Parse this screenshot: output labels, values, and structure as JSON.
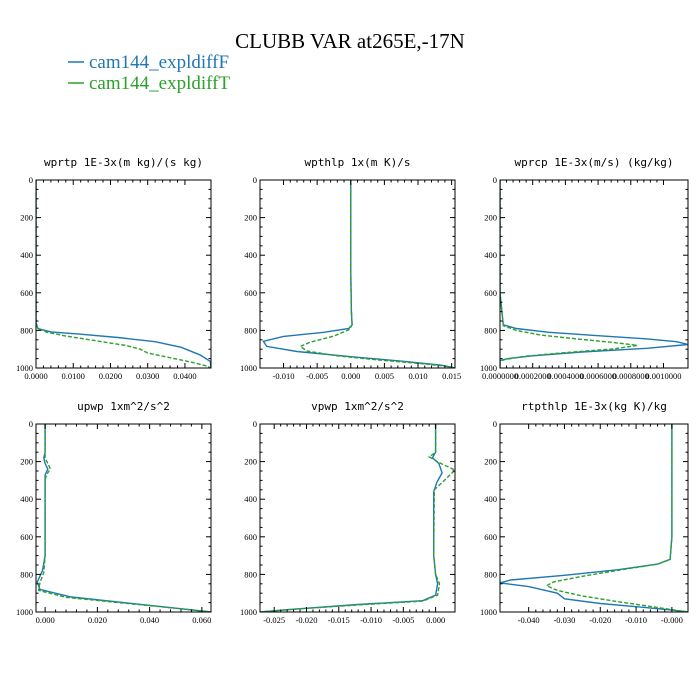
{
  "figure": {
    "title": "CLUBB VAR at265E,-17N",
    "legend": [
      {
        "name": "cam144_expldiffF",
        "color": "#1f77b4",
        "dash": "solid"
      },
      {
        "name": "cam144_expldiffT",
        "color": "#2ca02c",
        "dash": "dashed"
      }
    ]
  },
  "chart_data": [
    {
      "type": "line",
      "title": "wprtp  1E-3x(m kg)/(s kg)",
      "xlim": [
        0,
        0.047
      ],
      "ylim": [
        1000,
        0
      ],
      "y_inverted": true,
      "xticks": [
        "0.0000",
        "0.0100",
        "0.0200",
        "0.0300",
        "0.0400"
      ],
      "xtick_values": [
        0,
        0.01,
        0.02,
        0.03,
        0.04
      ],
      "yticks": [
        "0",
        "200",
        "400",
        "600",
        "800",
        "1000"
      ],
      "series": [
        {
          "name": "cam144_expldiffF",
          "x": [
            0,
            0,
            0,
            0.0005,
            0.004,
            0.012,
            0.022,
            0.032,
            0.039,
            0.044,
            0.0468,
            0.047
          ],
          "y": [
            0,
            600,
            760,
            790,
            808,
            820,
            838,
            860,
            890,
            930,
            965,
            1000
          ]
        },
        {
          "name": "cam144_expldiffT",
          "x": [
            0,
            0,
            0,
            0.0005,
            0.003,
            0.008,
            0.016,
            0.024,
            0.028,
            0.03,
            0.036,
            0.042,
            0.046,
            0.047
          ],
          "y": [
            0,
            600,
            760,
            790,
            810,
            830,
            855,
            880,
            900,
            920,
            945,
            970,
            990,
            1000
          ]
        }
      ]
    },
    {
      "type": "line",
      "title": "wpthlp  1x(m K)/s",
      "xlim": [
        -0.0135,
        0.0155
      ],
      "ylim": [
        1000,
        0
      ],
      "y_inverted": true,
      "xticks": [
        "-0.010",
        "-0.005",
        "0.000",
        "0.005",
        "0.010",
        "0.015"
      ],
      "xtick_values": [
        -0.01,
        -0.005,
        0,
        0.005,
        0.01,
        0.015
      ],
      "yticks": [
        "0",
        "200",
        "400",
        "600",
        "800",
        "1000"
      ],
      "series": [
        {
          "name": "cam144_expldiffF",
          "x": [
            0,
            0,
            0.0001,
            0.0002,
            -0.0003,
            -0.004,
            -0.01,
            -0.013,
            -0.0125,
            -0.008,
            0.0,
            0.008,
            0.0135,
            0.0155
          ],
          "y": [
            0,
            500,
            700,
            770,
            790,
            810,
            832,
            858,
            885,
            912,
            940,
            965,
            985,
            1000
          ]
        },
        {
          "name": "cam144_expldiffT",
          "x": [
            0,
            0,
            0.0001,
            0.0002,
            -0.0002,
            -0.0025,
            -0.006,
            -0.0075,
            -0.0065,
            -0.002,
            0.004,
            0.01,
            0.014,
            0.0155
          ],
          "y": [
            0,
            500,
            700,
            770,
            795,
            830,
            862,
            885,
            910,
            935,
            957,
            975,
            990,
            1000
          ]
        }
      ]
    },
    {
      "type": "line",
      "title": "wprcp  1E-3x(m/s) (kg/kg)",
      "xlim": [
        0,
        0.00115
      ],
      "ylim": [
        1000,
        0
      ],
      "y_inverted": true,
      "xticks": [
        "0.0000000",
        "0.0002000",
        "0.0004000",
        "0.0006000",
        "0.0008000",
        "0.0010000"
      ],
      "xtick_values": [
        0,
        0.0002,
        0.0004,
        0.0006,
        0.0008,
        0.001
      ],
      "yticks": [
        "0",
        "200",
        "400",
        "600",
        "800",
        "1000"
      ],
      "series": [
        {
          "name": "cam144_expldiffF",
          "x": [
            0,
            0,
            2e-05,
            0.0001,
            0.0003,
            0.0006,
            0.0009,
            0.00108,
            0.00115,
            0.0009,
            0.0005,
            0.0002,
            5e-05,
            0.0,
            0.0
          ],
          "y": [
            0,
            600,
            770,
            790,
            810,
            828,
            845,
            860,
            875,
            895,
            915,
            935,
            950,
            960,
            1000
          ]
        },
        {
          "name": "cam144_expldiffT",
          "x": [
            0,
            0,
            2e-05,
            0.0001,
            0.00025,
            0.0005,
            0.0007,
            0.00084,
            0.0007,
            0.0004,
            0.00015,
            3e-05,
            0.0,
            0.0
          ],
          "y": [
            0,
            600,
            775,
            800,
            825,
            848,
            865,
            880,
            898,
            918,
            938,
            955,
            965,
            1000
          ]
        }
      ]
    },
    {
      "type": "line",
      "title": "upwp  1xm^2/s^2",
      "xlim": [
        -0.0035,
        0.0635
      ],
      "ylim": [
        1000,
        0
      ],
      "y_inverted": true,
      "xticks": [
        "0.000",
        "0.020",
        "0.040",
        "0.060"
      ],
      "xtick_values": [
        0,
        0.02,
        0.04,
        0.06
      ],
      "yticks": [
        "0",
        "200",
        "400",
        "600",
        "800",
        "1000"
      ],
      "series": [
        {
          "name": "cam144_expldiffF",
          "x": [
            0,
            0,
            -0.0005,
            0.0,
            0.001,
            0.0,
            0.0,
            0.0,
            -0.001,
            -0.003,
            -0.002,
            0.01,
            0.03,
            0.05,
            0.0635
          ],
          "y": [
            0,
            150,
            180,
            210,
            240,
            270,
            300,
            700,
            780,
            840,
            880,
            920,
            950,
            980,
            1000
          ]
        },
        {
          "name": "cam144_expldiffT",
          "x": [
            0,
            0,
            0.0,
            0.001,
            0.002,
            0.0005,
            0.0,
            0.0,
            -0.0005,
            -0.002,
            -0.0025,
            0.008,
            0.028,
            0.05,
            0.0635
          ],
          "y": [
            0,
            150,
            180,
            210,
            240,
            270,
            300,
            700,
            790,
            845,
            885,
            922,
            950,
            980,
            1000
          ]
        }
      ]
    },
    {
      "type": "line",
      "title": "vpwp  1xm^2/s^2",
      "xlim": [
        -0.0272,
        0.003
      ],
      "ylim": [
        1000,
        0
      ],
      "y_inverted": true,
      "xticks": [
        "-0.025",
        "-0.020",
        "-0.015",
        "-0.010",
        "-0.005",
        "0.000"
      ],
      "xtick_values": [
        -0.025,
        -0.02,
        -0.015,
        -0.01,
        -0.005,
        0
      ],
      "yticks": [
        "0",
        "200",
        "400",
        "600",
        "800",
        "1000"
      ],
      "series": [
        {
          "name": "cam144_expldiffF",
          "x": [
            0,
            0,
            -0.0005,
            0.0005,
            0.001,
            0.0002,
            -0.0003,
            -0.0003,
            0.0,
            0.0003,
            0.0,
            -0.002,
            -0.012,
            -0.022,
            -0.0272
          ],
          "y": [
            0,
            150,
            180,
            210,
            260,
            310,
            360,
            700,
            800,
            850,
            910,
            940,
            960,
            985,
            1000
          ]
        },
        {
          "name": "cam144_expldiffT",
          "x": [
            0,
            0,
            -0.001,
            0.0005,
            0.003,
            0.0015,
            -0.0002,
            -0.0003,
            0.0,
            0.0006,
            0.0003,
            -0.002,
            -0.012,
            -0.022,
            -0.0272
          ],
          "y": [
            0,
            150,
            175,
            205,
            245,
            295,
            350,
            700,
            800,
            850,
            910,
            942,
            962,
            985,
            1000
          ]
        }
      ]
    },
    {
      "type": "line",
      "title": "rtpthlp  1E-3x(kg K)/kg",
      "xlim": [
        -0.048,
        0.0045
      ],
      "ylim": [
        1000,
        0
      ],
      "y_inverted": true,
      "xticks": [
        "-0.040",
        "-0.030",
        "-0.020",
        "-0.010",
        "-0.000"
      ],
      "xtick_values": [
        -0.04,
        -0.03,
        -0.02,
        -0.01,
        0
      ],
      "yticks": [
        "0",
        "200",
        "400",
        "600",
        "800",
        "1000"
      ],
      "series": [
        {
          "name": "cam144_expldiffF",
          "x": [
            0,
            0,
            -0.0005,
            -0.004,
            -0.015,
            -0.03,
            -0.045,
            -0.048,
            -0.04,
            -0.032,
            -0.03,
            -0.02,
            -0.008,
            0.0,
            0.0045
          ],
          "y": [
            0,
            600,
            720,
            745,
            775,
            805,
            830,
            845,
            865,
            900,
            930,
            955,
            975,
            990,
            1000
          ]
        },
        {
          "name": "cam144_expldiffT",
          "x": [
            0,
            0,
            -0.0005,
            -0.004,
            -0.014,
            -0.025,
            -0.033,
            -0.035,
            -0.032,
            -0.025,
            -0.015,
            -0.006,
            0.0,
            0.0045
          ],
          "y": [
            0,
            600,
            720,
            745,
            775,
            810,
            840,
            860,
            885,
            915,
            945,
            970,
            988,
            1000
          ]
        }
      ]
    }
  ]
}
